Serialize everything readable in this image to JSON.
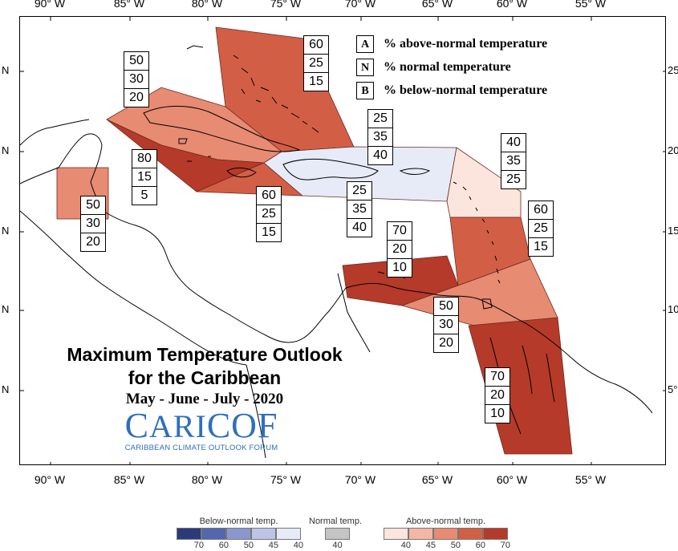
{
  "axes": {
    "lon_ticks": [
      "90° W",
      "85° W",
      "80° W",
      "75° W",
      "70° W",
      "65° W",
      "60° W",
      "55° W"
    ],
    "lat_left_label": "N",
    "lat_right_ticks": [
      "25",
      "20",
      "15",
      "10",
      "5°"
    ]
  },
  "key": [
    {
      "letter": "A",
      "text": "% above-normal temperature"
    },
    {
      "letter": "N",
      "text": "% normal temperature"
    },
    {
      "letter": "B",
      "text": "% below-normal temperature"
    }
  ],
  "title": {
    "line1": "Maximum Temperature Outlook",
    "line2": "for the Caribbean",
    "line3": "May - June - July - 2020"
  },
  "logo": {
    "name_part1": "C",
    "name_part2": "ARI",
    "name_part3": "COF",
    "tagline": "CARIBBEAN CLIMATE OUTLOOK FORUM"
  },
  "region_colors": {
    "above_70": "#b53a2a",
    "above_60": "#d25f45",
    "above_50": "#e78b72",
    "above_40": "#fbe5dd",
    "below_40": "#e7ebf7",
    "land_outline": "#000000"
  },
  "regions": [
    {
      "name": "bahamas",
      "color_key": "above_60",
      "probs": [
        "60",
        "25",
        "15"
      ]
    },
    {
      "name": "cuba",
      "color_key": "above_50",
      "probs": [
        "50",
        "30",
        "20"
      ]
    },
    {
      "name": "cayman-jamaica",
      "color_key": "above_70",
      "probs": [
        "80",
        "15",
        "5"
      ]
    },
    {
      "name": "jamaica-south",
      "color_key": "above_60",
      "probs": [
        "60",
        "25",
        "15"
      ]
    },
    {
      "name": "belize",
      "color_key": "above_50",
      "probs": [
        "50",
        "30",
        "20"
      ]
    },
    {
      "name": "hispaniola-north",
      "color_key": "below_40",
      "probs": [
        "25",
        "35",
        "40"
      ]
    },
    {
      "name": "hispaniola-south",
      "color_key": "below_40",
      "probs": [
        "25",
        "35",
        "40"
      ]
    },
    {
      "name": "northern-lesser-antilles",
      "color_key": "above_40",
      "probs": [
        "40",
        "35",
        "25"
      ]
    },
    {
      "name": "eastern-caribbean",
      "color_key": "above_60",
      "probs": [
        "60",
        "25",
        "15"
      ]
    },
    {
      "name": "abc-islands",
      "color_key": "above_70",
      "probs": [
        "70",
        "20",
        "10"
      ]
    },
    {
      "name": "trinidad-tobago",
      "color_key": "above_50",
      "probs": [
        "50",
        "30",
        "20"
      ]
    },
    {
      "name": "guianas",
      "color_key": "above_70",
      "probs": [
        "70",
        "20",
        "10"
      ]
    }
  ],
  "colorbar": {
    "below": {
      "title": "Below-normal temp.",
      "colors": [
        "#2b3a78",
        "#5366b0",
        "#8a97cf",
        "#bcc5e7",
        "#e7ebf7"
      ],
      "ticks": [
        "70",
        "60",
        "50",
        "45",
        "40"
      ]
    },
    "normal": {
      "title": "Normal temp.",
      "colors": [
        "#c4c4c4"
      ],
      "ticks": [
        "40"
      ]
    },
    "above": {
      "title": "Above-normal temp.",
      "colors": [
        "#fbe5dd",
        "#f4b7a6",
        "#e78b72",
        "#d25f45",
        "#b53a2a"
      ],
      "ticks": [
        "40",
        "45",
        "50",
        "60",
        "70"
      ]
    }
  }
}
